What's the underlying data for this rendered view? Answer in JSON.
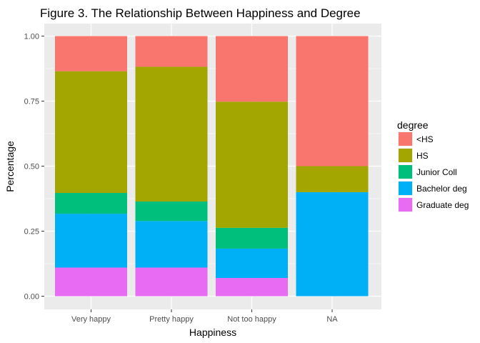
{
  "chart_data": {
    "type": "bar",
    "stacked": true,
    "title": "Figure 3. The Relationship Between Happiness and Degree",
    "xlabel": "Happiness",
    "ylabel": "Percentage",
    "categories": [
      "Very happy",
      "Pretty happy",
      "Not too happy",
      "NA"
    ],
    "ylim": [
      0,
      1
    ],
    "yticks": [
      0,
      0.25,
      0.5,
      0.75,
      1
    ],
    "ytick_labels": [
      "0.00",
      "0.25",
      "0.50",
      "0.75",
      "1.00"
    ],
    "legend_title": "degree",
    "legend_position": "right",
    "grid": true,
    "series": [
      {
        "name": "<HS",
        "color": "#F8766D",
        "values": [
          0.135,
          0.118,
          0.252,
          0.5
        ]
      },
      {
        "name": "HS",
        "color": "#A3A500",
        "values": [
          0.468,
          0.518,
          0.485,
          0.1
        ]
      },
      {
        "name": "Junior Coll",
        "color": "#00BF7D",
        "values": [
          0.08,
          0.075,
          0.08,
          0.0
        ]
      },
      {
        "name": "Bachelor deg",
        "color": "#00B0F6",
        "values": [
          0.207,
          0.179,
          0.113,
          0.4
        ]
      },
      {
        "name": "Graduate deg",
        "color": "#E76BF3",
        "values": [
          0.11,
          0.11,
          0.07,
          0.0
        ]
      }
    ]
  }
}
